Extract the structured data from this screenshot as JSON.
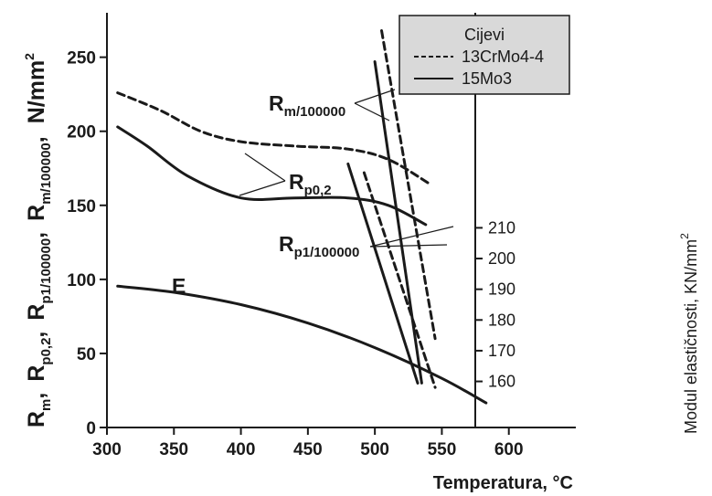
{
  "chart_data": {
    "type": "line",
    "xlabel": "Temperatura, °C",
    "ylabel_left_parts": [
      {
        "base": "R",
        "sub": "m",
        "suffix": ","
      },
      {
        "base": "R",
        "sub": "p0,2",
        "suffix": ","
      },
      {
        "base": "R",
        "sub": "p1/100000",
        "suffix": ","
      },
      {
        "base": "R",
        "sub": "m/100000",
        "suffix": ","
      }
    ],
    "ylabel_left_unit": {
      "base": "N/mm",
      "sup": "2"
    },
    "ylabel_right": {
      "base": "Modul elastičnosti, KN/mm",
      "sup": "2"
    },
    "xlim": [
      300,
      650
    ],
    "ylim": [
      0,
      280
    ],
    "y2lim": [
      145,
      280
    ],
    "x_ticks": [
      300,
      350,
      400,
      450,
      500,
      550,
      600
    ],
    "y_ticks": [
      0,
      50,
      100,
      150,
      200,
      250
    ],
    "y2_ticks": [
      160,
      170,
      180,
      190,
      200,
      210
    ],
    "legend": {
      "title": "Cijevi",
      "position": "top-right",
      "entries": [
        {
          "label": "13CrMo4-4",
          "style": "dashed"
        },
        {
          "label": "15Mo3",
          "style": "solid"
        }
      ]
    },
    "series": [
      {
        "group": "Rp0,2",
        "material": "13CrMo4-4",
        "style": "dashed",
        "axis": "left",
        "x": [
          308,
          340,
          370,
          400,
          440,
          480,
          510,
          540
        ],
        "y": [
          226,
          214,
          200,
          193,
          190,
          188,
          181,
          165
        ]
      },
      {
        "group": "Rp0,2",
        "material": "15Mo3",
        "style": "solid",
        "axis": "left",
        "x": [
          308,
          330,
          360,
          400,
          440,
          480,
          510,
          538
        ],
        "y": [
          203,
          190,
          170,
          155,
          155,
          155,
          150,
          137
        ]
      },
      {
        "group": "Rm/100000",
        "material": "13CrMo4-4",
        "style": "dashed",
        "axis": "left",
        "x": [
          505,
          545
        ],
        "y": [
          268,
          60
        ]
      },
      {
        "group": "Rm/100000",
        "material": "15Mo3",
        "style": "solid",
        "axis": "left",
        "x": [
          500,
          535
        ],
        "y": [
          247,
          30
        ]
      },
      {
        "group": "Rp1/100000",
        "material": "13CrMo4-4",
        "style": "dashed",
        "axis": "left",
        "x": [
          492,
          545
        ],
        "y": [
          172,
          27
        ]
      },
      {
        "group": "Rp1/100000",
        "material": "15Mo3",
        "style": "solid",
        "axis": "left",
        "x": [
          480,
          532
        ],
        "y": [
          178,
          30
        ]
      },
      {
        "group": "E",
        "material": "",
        "style": "solid",
        "axis": "right",
        "x": [
          308,
          350,
          400,
          450,
          500,
          550,
          583
        ],
        "y": [
          191,
          189,
          185,
          179,
          171,
          161,
          153
        ]
      }
    ],
    "annotations": [
      {
        "base": "R",
        "sub": "m/100000"
      },
      {
        "base": "R",
        "sub": "p0,2"
      },
      {
        "base": "R",
        "sub": "p1/100000"
      },
      {
        "base": "E",
        "sub": ""
      }
    ],
    "grid": false
  }
}
